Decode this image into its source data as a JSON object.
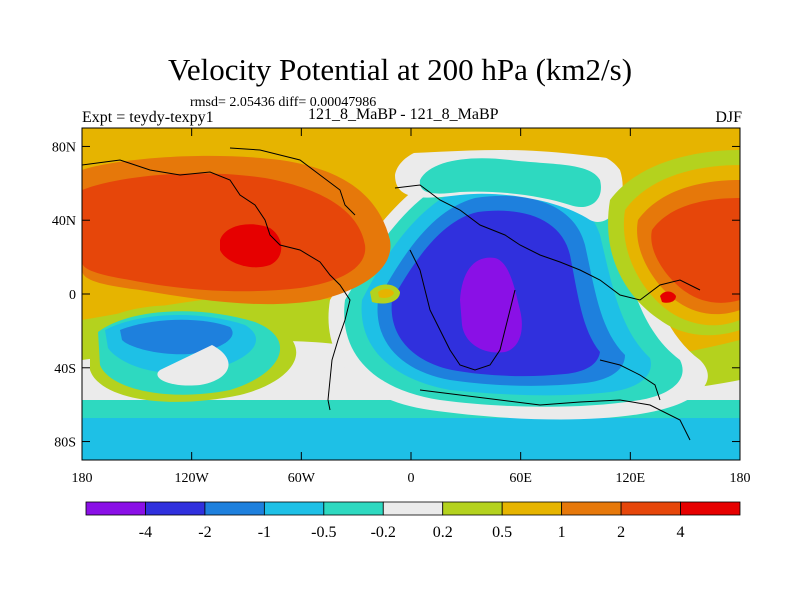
{
  "header": {
    "title": "Velocity Potential at 200 hPa (km2/s)",
    "stats": "rmsd= 2.05436 diff= 0.00047986",
    "experiment": "Expt = teydy-texpy1",
    "comparison": "121_8_MaBP - 121_8_MaBP",
    "season": "DJF"
  },
  "axes": {
    "x_ticks": [
      "180",
      "120W",
      "60W",
      "0",
      "60E",
      "120E",
      "180"
    ],
    "y_ticks": [
      "80N",
      "40N",
      "0",
      "40S",
      "80S"
    ]
  },
  "colorbar": {
    "labels": [
      "-4",
      "-2",
      "-1",
      "-0.5",
      "-0.2",
      "0.2",
      "0.5",
      "1",
      "2",
      "4"
    ],
    "colors": [
      "#8a10e6",
      "#3030dd",
      "#1e80dd",
      "#1ec0e6",
      "#2ed9c0",
      "#ebebeb",
      "#b4d21e",
      "#e6b400",
      "#e6780a",
      "#e6460a",
      "#e60000"
    ]
  }
}
